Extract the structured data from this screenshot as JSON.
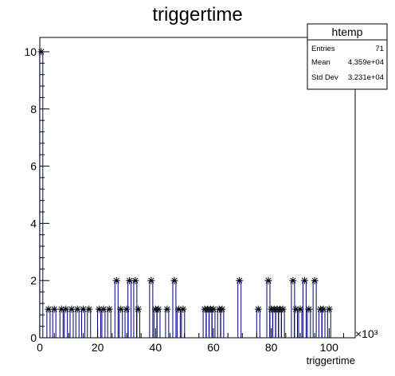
{
  "chart_data": {
    "type": "histogram",
    "title": "triggertime",
    "xlabel": "triggertime",
    "ylabel": "",
    "x_multiplier": "×10³",
    "xlim": [
      0,
      109
    ],
    "ylim": [
      0,
      10.5
    ],
    "x_ticks": [
      0,
      20,
      40,
      60,
      80,
      100
    ],
    "x_tick_labels": [
      "0",
      "20",
      "40",
      "60",
      "80",
      "100"
    ],
    "y_ticks": [
      0,
      2,
      4,
      6,
      8,
      10
    ],
    "y_tick_labels": [
      "0",
      "2",
      "4",
      "6",
      "8",
      "10"
    ],
    "bin_width": 1.09,
    "line_color": "#000080",
    "marker": "asterisk",
    "points": [
      {
        "x": 0.5,
        "y": 10
      },
      {
        "x": 3,
        "y": 1
      },
      {
        "x": 5,
        "y": 1
      },
      {
        "x": 7.5,
        "y": 1
      },
      {
        "x": 9,
        "y": 1
      },
      {
        "x": 11,
        "y": 1
      },
      {
        "x": 13,
        "y": 1
      },
      {
        "x": 15,
        "y": 1
      },
      {
        "x": 17,
        "y": 1
      },
      {
        "x": 20.5,
        "y": 1
      },
      {
        "x": 22,
        "y": 1
      },
      {
        "x": 24,
        "y": 1
      },
      {
        "x": 26.5,
        "y": 2
      },
      {
        "x": 28,
        "y": 1
      },
      {
        "x": 30,
        "y": 1
      },
      {
        "x": 31,
        "y": 2
      },
      {
        "x": 33,
        "y": 2
      },
      {
        "x": 34,
        "y": 1
      },
      {
        "x": 38.5,
        "y": 2
      },
      {
        "x": 40,
        "y": 1
      },
      {
        "x": 41,
        "y": 1
      },
      {
        "x": 44,
        "y": 1
      },
      {
        "x": 46.5,
        "y": 2
      },
      {
        "x": 48,
        "y": 1
      },
      {
        "x": 49.5,
        "y": 1
      },
      {
        "x": 57,
        "y": 1
      },
      {
        "x": 58,
        "y": 1
      },
      {
        "x": 59,
        "y": 1
      },
      {
        "x": 60,
        "y": 1
      },
      {
        "x": 62,
        "y": 1
      },
      {
        "x": 63,
        "y": 1
      },
      {
        "x": 69,
        "y": 2
      },
      {
        "x": 75.5,
        "y": 1
      },
      {
        "x": 79,
        "y": 2
      },
      {
        "x": 80,
        "y": 1
      },
      {
        "x": 81,
        "y": 1
      },
      {
        "x": 82,
        "y": 1
      },
      {
        "x": 83,
        "y": 1
      },
      {
        "x": 84,
        "y": 1
      },
      {
        "x": 87.5,
        "y": 2
      },
      {
        "x": 88.5,
        "y": 1
      },
      {
        "x": 90,
        "y": 1
      },
      {
        "x": 91.5,
        "y": 2
      },
      {
        "x": 93,
        "y": 1
      },
      {
        "x": 95,
        "y": 2
      },
      {
        "x": 97,
        "y": 1
      },
      {
        "x": 98,
        "y": 1
      },
      {
        "x": 100,
        "y": 1
      }
    ]
  },
  "stats": {
    "name": "htemp",
    "rows": [
      {
        "label": "Entries",
        "value": "71"
      },
      {
        "label": "Mean",
        "value": "4.359e+04"
      },
      {
        "label": "Std Dev",
        "value": "3.231e+04"
      }
    ]
  }
}
